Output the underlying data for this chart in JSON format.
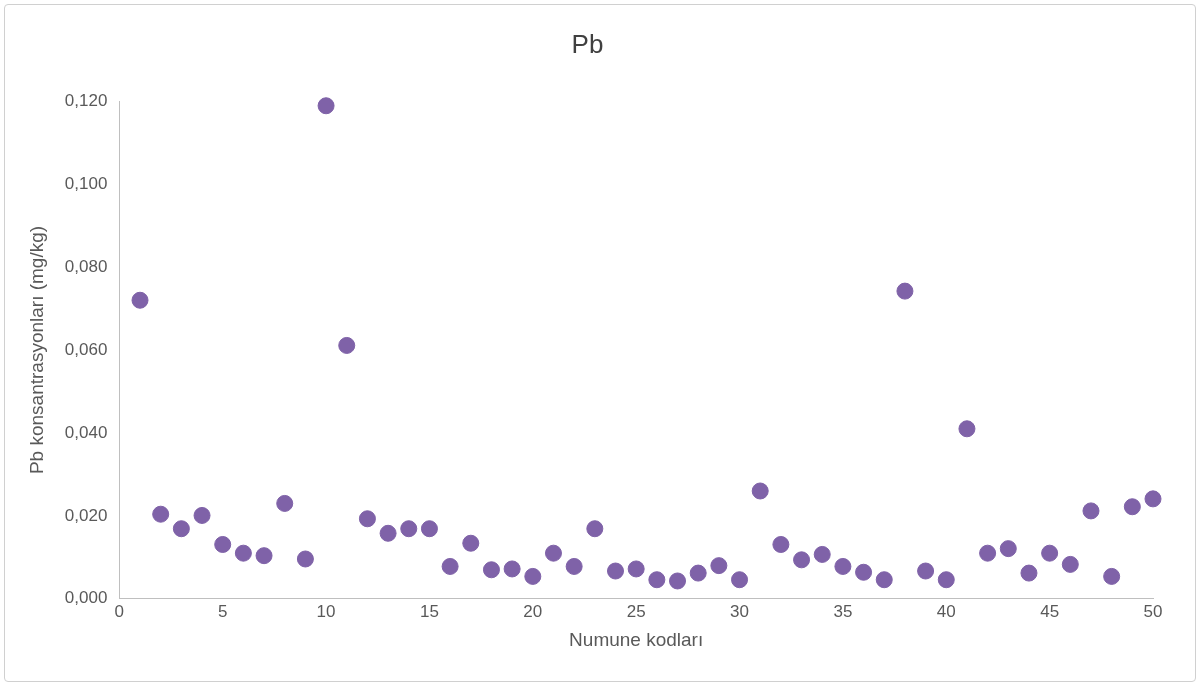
{
  "chart_data": {
    "type": "scatter",
    "title": "Pb",
    "xlabel": "Numune kodları",
    "ylabel": "Pb konsantrasyonları (mg/kg)",
    "x": [
      1,
      2,
      3,
      4,
      5,
      6,
      7,
      8,
      9,
      10,
      11,
      12,
      13,
      14,
      15,
      16,
      17,
      18,
      19,
      20,
      21,
      22,
      23,
      24,
      25,
      26,
      27,
      28,
      29,
      30,
      31,
      32,
      33,
      34,
      35,
      36,
      37,
      38,
      39,
      40,
      41,
      42,
      43,
      44,
      45,
      46,
      47,
      48,
      49,
      50
    ],
    "series": [
      {
        "color": "#7f62a8",
        "values": [
          0.072,
          0.0204,
          0.0169,
          0.0201,
          0.0131,
          0.011,
          0.0104,
          0.023,
          0.0096,
          0.1189,
          0.0611,
          0.0193,
          0.0158,
          0.0169,
          0.0169,
          0.0078,
          0.0134,
          0.007,
          0.0072,
          0.0054,
          0.011,
          0.0078,
          0.0169,
          0.0067,
          0.0072,
          0.0046,
          0.0043,
          0.0062,
          0.008,
          0.0046,
          0.026,
          0.0131,
          0.0094,
          0.0107,
          0.0078,
          0.0064,
          0.0046,
          0.0742,
          0.0067,
          0.0046,
          0.041,
          0.011,
          0.0121,
          0.0062,
          0.011,
          0.0083,
          0.0212,
          0.0054,
          0.0222,
          0.0241
        ]
      }
    ],
    "xlim": [
      0,
      50
    ],
    "xticks": [
      0,
      5,
      10,
      15,
      20,
      25,
      30,
      35,
      40,
      45,
      50
    ],
    "ylim": [
      0,
      0.12
    ],
    "yticks": [
      {
        "value": 0,
        "label": "0,000"
      },
      {
        "value": 0.02,
        "label": "0,020"
      },
      {
        "value": 0.04,
        "label": "0,040"
      },
      {
        "value": 0.06,
        "label": "0,060"
      },
      {
        "value": 0.08,
        "label": "0,080"
      },
      {
        "value": 0.1,
        "label": "0,100"
      },
      {
        "value": 0.12,
        "label": "0,120"
      }
    ],
    "grid": false,
    "legend": false,
    "marker": "circle"
  }
}
